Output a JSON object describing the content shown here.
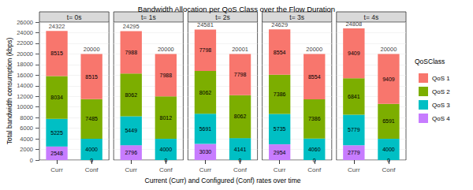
{
  "chart_data": {
    "type": "bar",
    "title": "Bandwidth Allocation per QoS Class over the Flow Duration",
    "x_label": "Current (Curr) and Configured (Conf) rates over time",
    "y_label": "Total bandwidth consumption (kbps)",
    "legend_title": "QoSClass",
    "legend": "right",
    "stacked": true,
    "data_labels": true,
    "grid": true,
    "ylim": [
      0,
      26000
    ],
    "yticks": [
      0,
      2000,
      4000,
      6000,
      8000,
      10000,
      12000,
      14000,
      16000,
      18000,
      20000,
      22000,
      24000,
      26000
    ],
    "facets": [
      {
        "title": "t= 0s",
        "categories": [
          "Curr",
          "Conf"
        ],
        "totals": [
          24322,
          20000
        ],
        "series": [
          {
            "name": "QoS 1",
            "color": "#F8766D",
            "values": [
              8515,
              8515
            ]
          },
          {
            "name": "QoS 2",
            "color": "#7CAE00",
            "values": [
              8034,
              7485
            ]
          },
          {
            "name": "QoS 3",
            "color": "#00BFC4",
            "values": [
              5225,
              4000
            ]
          },
          {
            "name": "QoS 4",
            "color": "#C77CFF",
            "values": [
              2548,
              0
            ]
          }
        ]
      },
      {
        "title": "t= 1s",
        "categories": [
          "Curr",
          "Conf"
        ],
        "totals": [
          24295,
          20000
        ],
        "series": [
          {
            "name": "QoS 1",
            "color": "#F8766D",
            "values": [
              7988,
              7988
            ]
          },
          {
            "name": "QoS 2",
            "color": "#7CAE00",
            "values": [
              8062,
              8012
            ]
          },
          {
            "name": "QoS 3",
            "color": "#00BFC4",
            "values": [
              5449,
              4000
            ]
          },
          {
            "name": "QoS 4",
            "color": "#C77CFF",
            "values": [
              2796,
              0
            ]
          }
        ]
      },
      {
        "title": "t= 2s",
        "categories": [
          "Curr",
          "Conf"
        ],
        "totals": [
          24581,
          20001
        ],
        "series": [
          {
            "name": "QoS 1",
            "color": "#F8766D",
            "values": [
              7798,
              7798
            ]
          },
          {
            "name": "QoS 2",
            "color": "#7CAE00",
            "values": [
              8062,
              8062
            ]
          },
          {
            "name": "QoS 3",
            "color": "#00BFC4",
            "values": [
              5691,
              4141
            ]
          },
          {
            "name": "QoS 4",
            "color": "#C77CFF",
            "values": [
              3030,
              0
            ]
          }
        ]
      },
      {
        "title": "t= 3s",
        "categories": [
          "Curr",
          "Conf"
        ],
        "totals": [
          24629,
          20000
        ],
        "series": [
          {
            "name": "QoS 1",
            "color": "#F8766D",
            "values": [
              8554,
              8554
            ]
          },
          {
            "name": "QoS 2",
            "color": "#7CAE00",
            "values": [
              7386,
              7386
            ]
          },
          {
            "name": "QoS 3",
            "color": "#00BFC4",
            "values": [
              5735,
              4060
            ]
          },
          {
            "name": "QoS 4",
            "color": "#C77CFF",
            "values": [
              2954,
              0
            ]
          }
        ]
      },
      {
        "title": "t= 4s",
        "categories": [
          "Curr",
          "Conf"
        ],
        "totals": [
          24808,
          20000
        ],
        "series": [
          {
            "name": "QoS 1",
            "color": "#F8766D",
            "values": [
              9409,
              9409
            ]
          },
          {
            "name": "QoS 2",
            "color": "#7CAE00",
            "values": [
              6841,
              6591
            ]
          },
          {
            "name": "QoS 3",
            "color": "#00BFC4",
            "values": [
              5779,
              4000
            ]
          },
          {
            "name": "QoS 4",
            "color": "#C77CFF",
            "values": [
              2779,
              0
            ]
          }
        ]
      }
    ]
  }
}
